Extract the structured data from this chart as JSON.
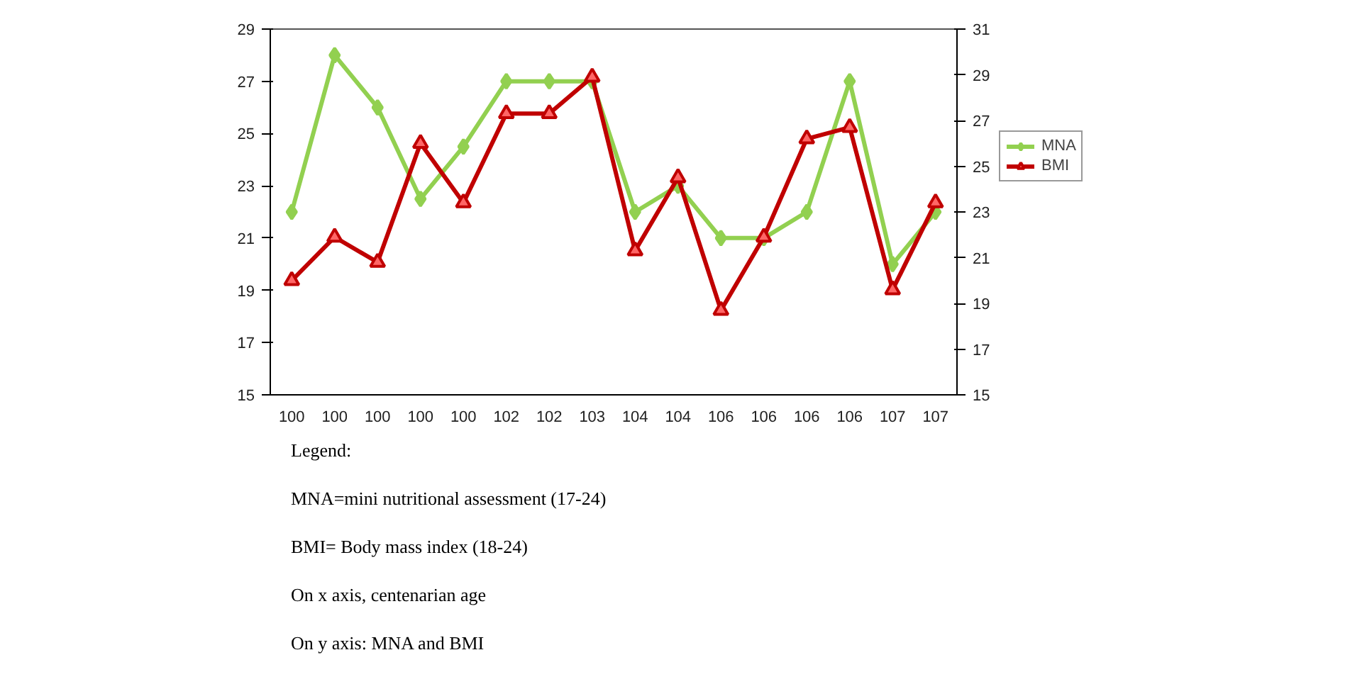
{
  "chart_data": {
    "type": "line",
    "categories": [
      "100",
      "100",
      "100",
      "100",
      "100",
      "102",
      "102",
      "103",
      "104",
      "104",
      "106",
      "106",
      "106",
      "106",
      "107",
      "107"
    ],
    "series": [
      {
        "name": "MNA",
        "color": "#92d050",
        "marker": "diamond",
        "values": [
          22,
          28,
          26,
          22.5,
          24.5,
          27,
          27,
          27,
          22,
          23,
          21,
          21,
          22,
          27,
          20,
          22
        ]
      },
      {
        "name": "BMI",
        "color": "#c00000",
        "marker": "triangle",
        "axis": "y2",
        "values": [
          20,
          21.9,
          20.8,
          26,
          23.4,
          27.3,
          27.3,
          28.9,
          21.3,
          24.5,
          18.7,
          21.9,
          26.2,
          26.7,
          19.6,
          23.4
        ]
      }
    ],
    "ylim": [
      15,
      29
    ],
    "yticks": [
      15,
      17,
      19,
      21,
      23,
      25,
      27,
      29
    ],
    "y2lim": [
      15,
      31
    ],
    "y2ticks": [
      15,
      17,
      19,
      21,
      23,
      25,
      27,
      29,
      31
    ],
    "grid": false,
    "legend": "right",
    "annotations": [
      "Legend:",
      "MNA=mini nutritional assessment (17-24)",
      "BMI= Body mass index (18-24)",
      "On x axis, centenarian age",
      "On y axis: MNA and BMI"
    ]
  }
}
